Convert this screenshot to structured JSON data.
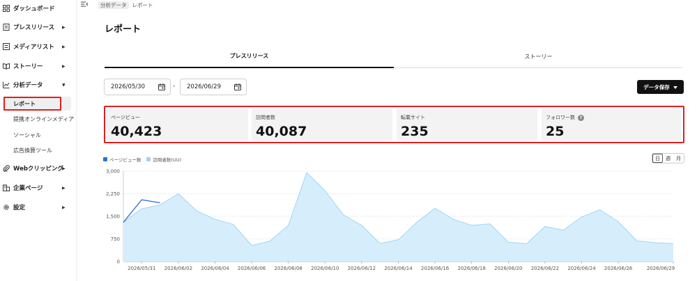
{
  "sidebar": {
    "items": [
      {
        "label": "ダッシュボード",
        "icon": "grid-icon",
        "caret": ""
      },
      {
        "label": "プレスリリース",
        "icon": "document-icon",
        "caret": "▶"
      },
      {
        "label": "メディアリスト",
        "icon": "list-icon",
        "caret": "▶"
      },
      {
        "label": "ストーリー",
        "icon": "book-icon",
        "caret": "▶"
      },
      {
        "label": "分析データ",
        "icon": "chart-icon",
        "caret": "▼"
      },
      {
        "label": "Webクリッピング",
        "icon": "paperclip-icon",
        "caret": "▶"
      },
      {
        "label": "企業ページ",
        "icon": "building-icon",
        "caret": "▶"
      },
      {
        "label": "設定",
        "icon": "gear-icon",
        "caret": "▶"
      }
    ],
    "sub_items": [
      {
        "label": "レポート"
      },
      {
        "label": "提携オンラインメディア"
      },
      {
        "label": "ソーシャル"
      },
      {
        "label": "広告換算ツール"
      }
    ]
  },
  "breadcrumb": {
    "items": [
      "分析データ",
      "レポート"
    ]
  },
  "page": {
    "title": "レポート"
  },
  "tabs": [
    {
      "label": "プレスリリース",
      "active": true
    },
    {
      "label": "ストーリー",
      "active": false
    }
  ],
  "date_range": {
    "start": "2026/05/30",
    "end": "2026/06/29",
    "separator": "-"
  },
  "save_button": {
    "label": "データ保存"
  },
  "stats": [
    {
      "label": "ページビュー",
      "value": "40,423"
    },
    {
      "label": "訪問者数",
      "value": "40,087"
    },
    {
      "label": "転載サイト",
      "value": "235"
    },
    {
      "label": "フォロワー数",
      "value": "25",
      "help": "?"
    }
  ],
  "period_toggle": [
    {
      "label": "日",
      "active": true
    },
    {
      "label": "週",
      "active": false
    },
    {
      "label": "月",
      "active": false
    }
  ],
  "colors": {
    "accent": "#e01e1e",
    "pageview": "#2f6fd6",
    "visitors": "#9fd4f5"
  },
  "chart_data": {
    "type": "area",
    "title": "",
    "xlabel": "",
    "ylabel": "",
    "ylim": [
      0,
      3000
    ],
    "yticks": [
      "0",
      "750",
      "1,500",
      "2,250",
      "3,000"
    ],
    "x": [
      "2026/05/30",
      "2026/05/31",
      "2026/06/01",
      "2026/06/02",
      "2026/06/03",
      "2026/06/04",
      "2026/06/05",
      "2026/06/06",
      "2026/06/07",
      "2026/06/08",
      "2026/06/09",
      "2026/06/10",
      "2026/06/11",
      "2026/06/12",
      "2026/06/13",
      "2026/06/14",
      "2026/06/15",
      "2026/06/16",
      "2026/06/17",
      "2026/06/18",
      "2026/06/19",
      "2026/06/20",
      "2026/06/21",
      "2026/06/22",
      "2026/06/23",
      "2026/06/24",
      "2026/06/25",
      "2026/06/26",
      "2026/06/27",
      "2026/06/28",
      "2026/06/29"
    ],
    "xtick_labels": [
      "2026/05/31",
      "2026/06/02",
      "2026/06/04",
      "2026/06/06",
      "2026/06/08",
      "2026/06/10",
      "2026/06/12",
      "2026/06/14",
      "2026/06/16",
      "2026/06/18",
      "2026/06/20",
      "2026/06/22",
      "2026/06/24",
      "2026/06/26",
      "2026/06/29"
    ],
    "series": [
      {
        "name": "ページビュー数",
        "values": [
          1300,
          2050,
          1950,
          null,
          null,
          null,
          null,
          null,
          null,
          null,
          null,
          null,
          null,
          null,
          null,
          null,
          null,
          null,
          null,
          null,
          null,
          null,
          null,
          null,
          null,
          null,
          null,
          null,
          null,
          null,
          null
        ]
      },
      {
        "name": "訪問者数(UU)",
        "values": [
          1300,
          1750,
          1880,
          2250,
          1680,
          1400,
          1230,
          530,
          680,
          1200,
          2950,
          2350,
          1550,
          1200,
          600,
          720,
          1300,
          1770,
          1400,
          1200,
          1250,
          640,
          590,
          1160,
          1040,
          1480,
          1720,
          1320,
          690,
          620,
          600
        ]
      }
    ]
  }
}
